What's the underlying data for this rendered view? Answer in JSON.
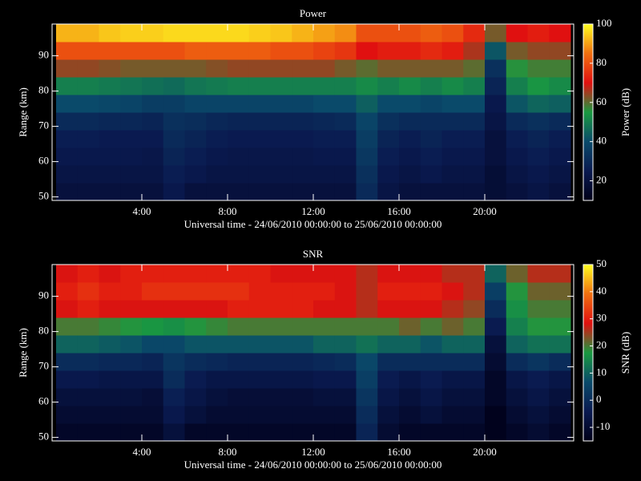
{
  "chart_data": [
    {
      "type": "heatmap",
      "title": "Power",
      "xlabel": "Universal time - 24/06/2010 00:00:00 to 25/06/2010 00:00:00",
      "ylabel": "Range (km)",
      "colorbar_label": "Power (dB)",
      "xlim": [
        0,
        24
      ],
      "xticks": [
        {
          "value": 4,
          "label": "4:00"
        },
        {
          "value": 8,
          "label": "8:00"
        },
        {
          "value": 12,
          "label": "12:00"
        },
        {
          "value": 16,
          "label": "16:00"
        },
        {
          "value": 20,
          "label": "20:00"
        }
      ],
      "ylim": [
        49,
        99
      ],
      "yticks": [
        50,
        60,
        70,
        80,
        90
      ],
      "clim": [
        10,
        100
      ],
      "cticks": [
        20,
        40,
        60,
        80,
        100
      ],
      "colormap": [
        "#000018",
        "#0a1a50",
        "#0a4a6a",
        "#1a9a40",
        "#e01010",
        "#f07010",
        "#ffff20"
      ],
      "x": [
        0.5,
        1.5,
        2.5,
        3.5,
        4.5,
        5.5,
        6.5,
        7.5,
        8.5,
        9.5,
        10.5,
        11.5,
        12.5,
        13.5,
        14.5,
        15.5,
        16.5,
        17.5,
        18.5,
        19.5,
        20.5,
        21.5,
        22.5,
        23.5
      ],
      "y": [
        51.5,
        56.5,
        61.5,
        66.5,
        71.5,
        76.5,
        81.5,
        86.5,
        91.5,
        96.5
      ],
      "values": [
        [
          20,
          20,
          20,
          20,
          20,
          24,
          20,
          20,
          20,
          20,
          20,
          20,
          20,
          20,
          30,
          22,
          20,
          20,
          20,
          20,
          18,
          20,
          22,
          20
        ],
        [
          22,
          22,
          22,
          22,
          22,
          26,
          24,
          22,
          22,
          22,
          22,
          22,
          22,
          22,
          32,
          24,
          22,
          24,
          22,
          22,
          18,
          22,
          24,
          22
        ],
        [
          24,
          24,
          24,
          24,
          23,
          28,
          26,
          24,
          23,
          23,
          23,
          23,
          24,
          24,
          34,
          26,
          24,
          26,
          24,
          24,
          20,
          24,
          26,
          24
        ],
        [
          26,
          26,
          25,
          25,
          25,
          30,
          28,
          26,
          25,
          25,
          25,
          25,
          26,
          26,
          36,
          28,
          26,
          28,
          26,
          26,
          20,
          26,
          28,
          26
        ],
        [
          30,
          30,
          29,
          29,
          28,
          32,
          31,
          29,
          28,
          28,
          28,
          28,
          29,
          30,
          38,
          32,
          30,
          30,
          30,
          30,
          22,
          30,
          32,
          30
        ],
        [
          40,
          40,
          39,
          38,
          36,
          36,
          38,
          38,
          38,
          38,
          38,
          38,
          40,
          40,
          44,
          40,
          40,
          38,
          40,
          40,
          24,
          42,
          45,
          44
        ],
        [
          50,
          50,
          49,
          48,
          47,
          46,
          48,
          49,
          50,
          50,
          50,
          50,
          50,
          50,
          52,
          50,
          52,
          50,
          52,
          50,
          28,
          50,
          54,
          52
        ],
        [
          64,
          64,
          63,
          62,
          62,
          62,
          62,
          63,
          64,
          64,
          64,
          64,
          64,
          62,
          60,
          62,
          62,
          62,
          62,
          60,
          32,
          56,
          58,
          58
        ],
        [
          80,
          80,
          80,
          80,
          80,
          80,
          82,
          82,
          82,
          82,
          80,
          80,
          78,
          76,
          70,
          72,
          72,
          74,
          72,
          66,
          42,
          62,
          64,
          64
        ],
        [
          92,
          92,
          94,
          95,
          95,
          96,
          96,
          96,
          96,
          95,
          94,
          92,
          90,
          88,
          80,
          80,
          80,
          82,
          80,
          74,
          62,
          70,
          72,
          70
        ]
      ]
    },
    {
      "type": "heatmap",
      "title": "SNR",
      "xlabel": "Universal time - 24/06/2010 00:00:00 to 25/06/2010 00:00:00",
      "ylabel": "Range (km)",
      "colorbar_label": "SNR (dB)",
      "xlim": [
        0,
        24
      ],
      "xticks": [
        {
          "value": 4,
          "label": "4:00"
        },
        {
          "value": 8,
          "label": "8:00"
        },
        {
          "value": 12,
          "label": "12:00"
        },
        {
          "value": 16,
          "label": "16:00"
        },
        {
          "value": 20,
          "label": "20:00"
        }
      ],
      "ylim": [
        49,
        99
      ],
      "yticks": [
        50,
        60,
        70,
        80,
        90
      ],
      "clim": [
        -15,
        50
      ],
      "cticks": [
        -10,
        0,
        10,
        20,
        30,
        40,
        50
      ],
      "colormap": [
        "#000018",
        "#0a1a50",
        "#0a4a6a",
        "#1a9a40",
        "#e01010",
        "#f07010",
        "#ffff20"
      ],
      "x": [
        0.5,
        1.5,
        2.5,
        3.5,
        4.5,
        5.5,
        6.5,
        7.5,
        8.5,
        9.5,
        10.5,
        11.5,
        12.5,
        13.5,
        14.5,
        15.5,
        16.5,
        17.5,
        18.5,
        19.5,
        20.5,
        21.5,
        22.5,
        23.5
      ],
      "y": [
        51.5,
        56.5,
        61.5,
        66.5,
        71.5,
        76.5,
        81.5,
        86.5,
        91.5,
        96.5
      ],
      "values": [
        [
          -12,
          -12,
          -12,
          -12,
          -12,
          -8,
          -12,
          -12,
          -12,
          -12,
          -12,
          -12,
          -12,
          -12,
          -2,
          -10,
          -12,
          -12,
          -12,
          -12,
          -14,
          -12,
          -10,
          -12
        ],
        [
          -10,
          -10,
          -10,
          -10,
          -10,
          -5,
          -8,
          -10,
          -10,
          -10,
          -10,
          -10,
          -10,
          -10,
          0,
          -8,
          -10,
          -8,
          -10,
          -10,
          -14,
          -10,
          -8,
          -10
        ],
        [
          -8,
          -8,
          -8,
          -8,
          -9,
          -3,
          -6,
          -8,
          -9,
          -9,
          -9,
          -9,
          -8,
          -8,
          2,
          -6,
          -8,
          -6,
          -8,
          -8,
          -12,
          -8,
          -6,
          -8
        ],
        [
          -5,
          -5,
          -6,
          -6,
          -6,
          0,
          -4,
          -6,
          -6,
          -6,
          -6,
          -6,
          -5,
          -5,
          4,
          -4,
          -6,
          -4,
          -6,
          -6,
          -12,
          -6,
          -4,
          -6
        ],
        [
          0,
          0,
          -1,
          -1,
          -2,
          2,
          0,
          -1,
          -2,
          -2,
          -2,
          -2,
          -1,
          0,
          6,
          0,
          0,
          0,
          0,
          0,
          -10,
          0,
          2,
          0
        ],
        [
          10,
          10,
          9,
          8,
          6,
          6,
          8,
          8,
          8,
          8,
          8,
          8,
          10,
          10,
          12,
          10,
          10,
          8,
          10,
          10,
          -8,
          10,
          12,
          12
        ],
        [
          20,
          20,
          19,
          18,
          17,
          16,
          18,
          19,
          20,
          20,
          20,
          20,
          20,
          20,
          20,
          20,
          22,
          20,
          22,
          20,
          -4,
          14,
          18,
          18
        ],
        [
          28,
          30,
          28,
          28,
          28,
          28,
          28,
          28,
          30,
          30,
          30,
          30,
          28,
          28,
          26,
          28,
          28,
          28,
          26,
          24,
          0,
          16,
          20,
          20
        ],
        [
          30,
          32,
          30,
          30,
          32,
          32,
          32,
          32,
          32,
          30,
          30,
          30,
          30,
          28,
          26,
          30,
          30,
          30,
          28,
          26,
          4,
          18,
          22,
          22
        ],
        [
          28,
          30,
          28,
          30,
          30,
          30,
          30,
          30,
          30,
          30,
          28,
          28,
          28,
          28,
          26,
          28,
          28,
          28,
          26,
          26,
          10,
          22,
          26,
          26
        ]
      ]
    }
  ]
}
